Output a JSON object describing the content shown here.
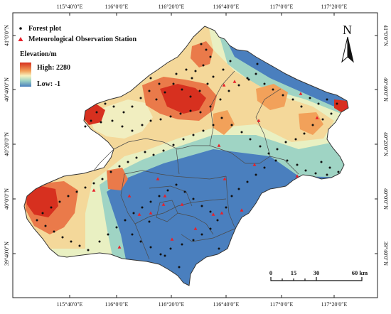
{
  "graticule": {
    "top_labels": [
      "115°40′0″E",
      "116°0′0″E",
      "116°20′0″E",
      "116°40′0″E",
      "117°0′0″E",
      "117°20′0″E"
    ],
    "bottom_labels": [
      "115°40′0″E",
      "116°0′0″E",
      "116°20′0″E",
      "116°40′0″E",
      "117°0′0″E",
      "117°20′0″E"
    ],
    "left_labels": [
      "41°0′0″N",
      "40°40′0″N",
      "40°20′0″N",
      "40°0′0″N",
      "39°40′0″N"
    ],
    "right_labels": [
      "41°0′0″N",
      "40°40′0″N",
      "40°20′0″N",
      "40°0′0″N",
      "39°40′0″N"
    ]
  },
  "legend": {
    "forest_plot": "Forest plot",
    "met_station": "Meteorological Observation Station",
    "elevation_title": "Elevation/m",
    "high": "High: 2280",
    "low": "Low: -1"
  },
  "north_arrow": {
    "label": "N"
  },
  "scale_bar": {
    "ticks": [
      "0",
      "15",
      "30",
      "60 km"
    ]
  },
  "colors": {
    "high": "#d7301f",
    "mid": "#f7f3c0",
    "low": "#4a7fbe",
    "plot": "#111111",
    "station": "#e8202a"
  }
}
